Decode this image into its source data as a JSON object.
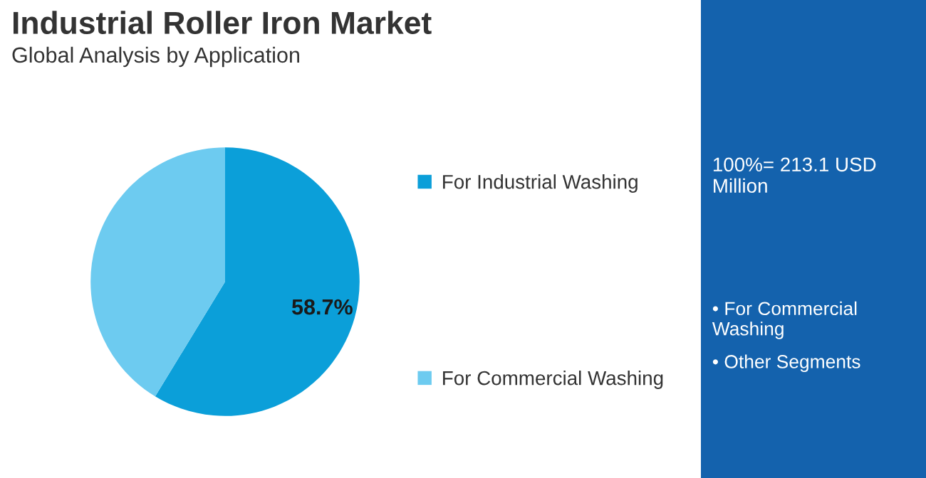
{
  "chart_data": [
    {
      "type": "pie",
      "title": "Industrial Roller Iron Market",
      "subtitle": "Global Analysis by Application",
      "categories": [
        "For Industrial Washing",
        "For Commercial Washing"
      ],
      "values": [
        58.7,
        41.3
      ],
      "colors": [
        "#0b9fd9",
        "#6dcbf0"
      ],
      "value_labels": [
        "58.7%",
        null
      ],
      "legend": "right"
    },
    {
      "type": "other",
      "annotations": [
        "100%= 213.1 USD Million",
        "• For Commercial Washing",
        "• Other Segments"
      ]
    }
  ]
}
